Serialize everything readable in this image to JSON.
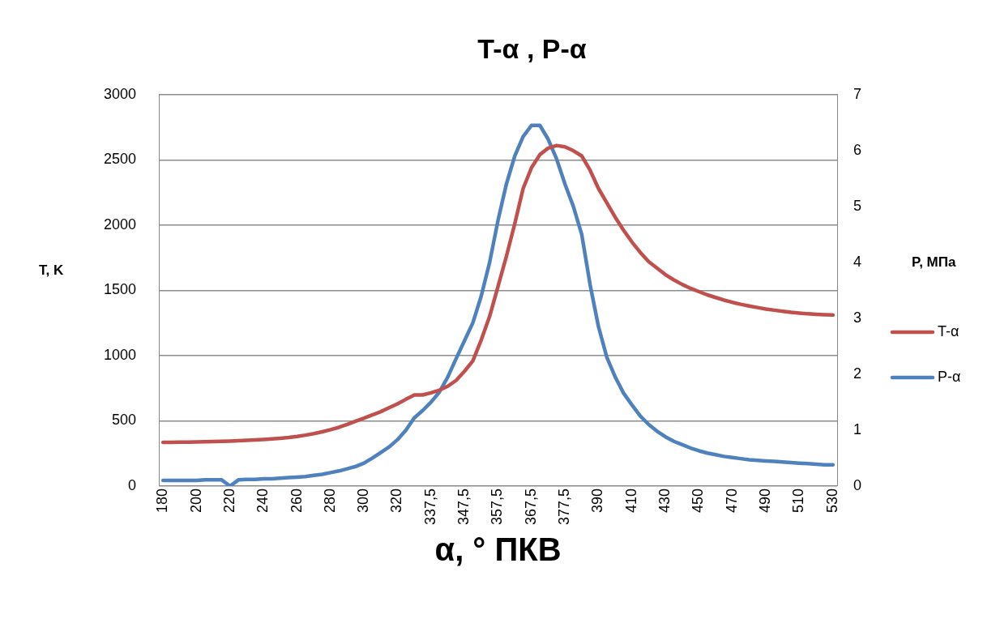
{
  "chart_data": {
    "type": "line",
    "title": "T-α , P-α",
    "xlabel": "α, ° ПКВ",
    "ylabel": "T, K",
    "y2label": "P, МПа",
    "categories": [
      "180",
      null,
      null,
      null,
      "200",
      null,
      null,
      null,
      "220",
      null,
      null,
      null,
      "240",
      null,
      null,
      null,
      "260",
      null,
      null,
      null,
      "280",
      null,
      null,
      null,
      "300",
      null,
      null,
      null,
      "320",
      null,
      null,
      null,
      "337,5",
      null,
      null,
      null,
      "347,5",
      null,
      null,
      null,
      "357,5",
      null,
      null,
      null,
      "367,5",
      null,
      null,
      null,
      "377,5",
      null,
      null,
      null,
      "390",
      null,
      null,
      null,
      "410",
      null,
      null,
      null,
      "430",
      null,
      null,
      null,
      "450",
      null,
      null,
      null,
      "470",
      null,
      null,
      null,
      "490",
      null,
      null,
      null,
      "510",
      null,
      null,
      null,
      "530"
    ],
    "series": [
      {
        "name": "T-α",
        "color": "#c0504d",
        "values": [
          335,
          335,
          336,
          337,
          338,
          339,
          341,
          343,
          345,
          347,
          350,
          353,
          357,
          361,
          366,
          372,
          380,
          390,
          402,
          416,
          432,
          450,
          472,
          497,
          520,
          545,
          570,
          600,
          630,
          665,
          698,
          698,
          715,
          735,
          765,
          810,
          880,
          960,
          1120,
          1300,
          1530,
          1760,
          2010,
          2280,
          2440,
          2540,
          2590,
          2610,
          2600,
          2570,
          2530,
          2420,
          2280,
          2170,
          2060,
          1960,
          1870,
          1790,
          1720,
          1670,
          1620,
          1580,
          1545,
          1515,
          1490,
          1465,
          1445,
          1425,
          1408,
          1393,
          1380,
          1368,
          1357,
          1348,
          1340,
          1332,
          1326,
          1320,
          1316,
          1313,
          1311
        ]
      },
      {
        "name": "P-α",
        "color": "#4f81bd",
        "axis": "y2",
        "values": [
          0.1,
          0.1,
          0.1,
          0.1,
          0.1,
          0.11,
          0.11,
          0.11,
          0.0,
          0.11,
          0.12,
          0.12,
          0.13,
          0.13,
          0.14,
          0.15,
          0.16,
          0.17,
          0.19,
          0.21,
          0.24,
          0.27,
          0.31,
          0.35,
          0.41,
          0.5,
          0.6,
          0.7,
          0.83,
          1.0,
          1.22,
          1.35,
          1.5,
          1.68,
          1.95,
          2.28,
          2.6,
          2.92,
          3.4,
          4.0,
          4.75,
          5.4,
          5.9,
          6.25,
          6.45,
          6.45,
          6.2,
          5.85,
          5.4,
          5.0,
          4.5,
          3.6,
          2.85,
          2.3,
          1.95,
          1.66,
          1.45,
          1.25,
          1.1,
          0.98,
          0.88,
          0.8,
          0.74,
          0.68,
          0.63,
          0.59,
          0.56,
          0.53,
          0.51,
          0.49,
          0.47,
          0.46,
          0.45,
          0.44,
          0.43,
          0.42,
          0.41,
          0.4,
          0.39,
          0.38,
          0.38
        ]
      }
    ],
    "ylim": [
      0,
      3000
    ],
    "yticks": [
      0,
      500,
      1000,
      1500,
      2000,
      2500,
      3000
    ],
    "y2lim": [
      0,
      7
    ],
    "y2ticks": [
      0,
      1,
      2,
      3,
      4,
      5,
      6,
      7
    ],
    "grid": "y",
    "legend": "right",
    "marker": "none",
    "line_style": "solid"
  }
}
